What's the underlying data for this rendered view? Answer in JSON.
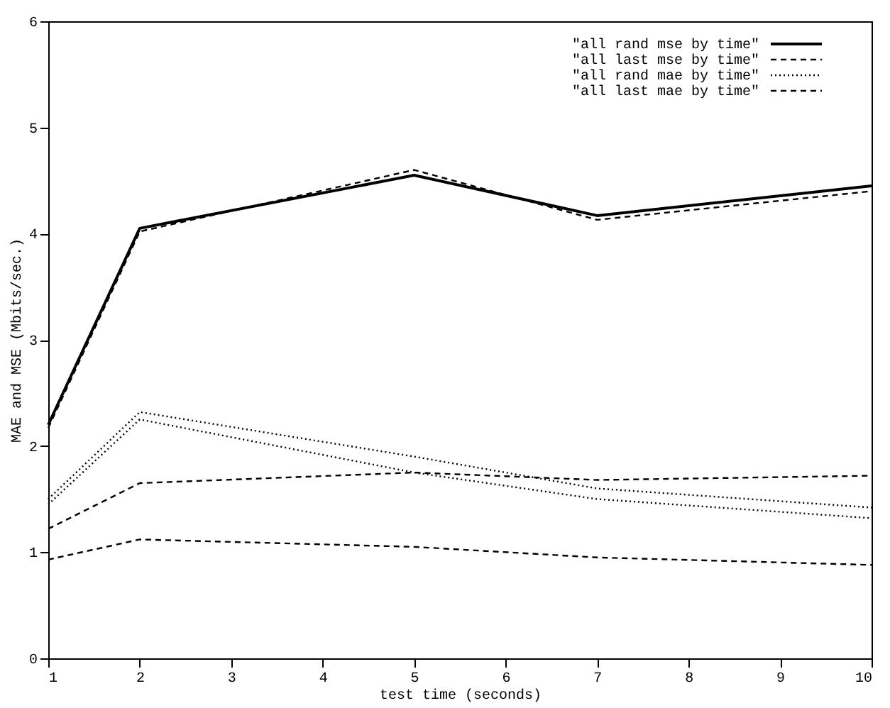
{
  "chart_data": {
    "type": "line",
    "xlabel": "test time (seconds)",
    "ylabel": "MAE and MSE (Mbits/sec.)",
    "x": [
      1,
      2,
      5,
      7,
      10
    ],
    "xlim": [
      1,
      10
    ],
    "xticks": [
      1,
      2,
      3,
      4,
      5,
      6,
      7,
      8,
      9,
      10
    ],
    "ylim": [
      0,
      6
    ],
    "yticks": [
      0,
      1,
      2,
      3,
      4,
      5,
      6
    ],
    "grid": false,
    "legend": "top right",
    "marker": "none",
    "series": [
      {
        "name": "\"all rand mse by time\"",
        "color": "#000000",
        "line_style": "solid",
        "values": [
          2.2,
          4.05,
          4.55,
          4.17,
          4.45
        ]
      },
      {
        "name": "\"all last mse by time\"",
        "color": "#000000",
        "line_style": "dashed",
        "values": [
          2.17,
          4.02,
          4.6,
          4.13,
          4.4
        ]
      },
      {
        "name": "\"all rand mae by time\"",
        "color": "#000000",
        "line_style": "dotted",
        "values": [
          1.5,
          2.32,
          1.9,
          1.6,
          1.42
        ]
      },
      {
        "color": "#000000",
        "line_style": "dotted",
        "values": [
          1.45,
          2.25,
          1.75,
          1.5,
          1.32
        ]
      },
      {
        "name": "\"all last mae by time\"",
        "color": "#000000",
        "line_style": "dashed",
        "values": [
          0.93,
          1.12,
          1.05,
          0.95,
          0.88
        ]
      },
      {
        "color": "#000000",
        "line_style": "dashed",
        "values": [
          1.22,
          1.65,
          1.75,
          1.68,
          1.72
        ]
      }
    ]
  }
}
